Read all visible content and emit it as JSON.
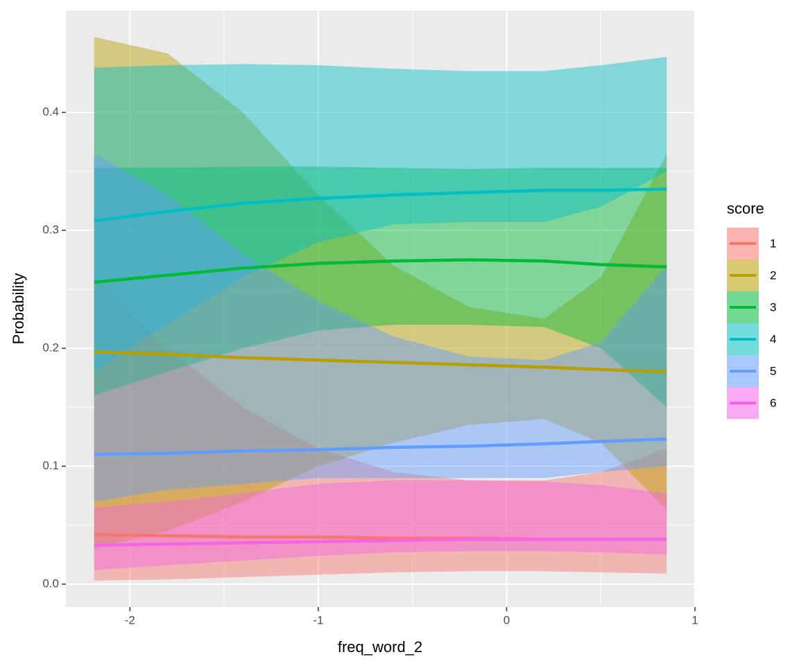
{
  "chart_data": {
    "type": "ribbon-line",
    "x_label": "freq_word_2",
    "y_label": "Probability",
    "legend_title": "score",
    "x": [
      -2.19,
      -1.8,
      -1.4,
      -1.0,
      -0.6,
      -0.2,
      0.2,
      0.5,
      0.85
    ],
    "xlim": [
      -2.34,
      1.0
    ],
    "xticks": [
      -2,
      -1,
      0,
      1
    ],
    "ylim": [
      -0.0194,
      0.4865
    ],
    "yticks": [
      {
        "value": 0,
        "label": "0.0"
      },
      0.1,
      0.2,
      0.3,
      0.4
    ],
    "grid": true,
    "legend": "right",
    "series": [
      {
        "name": "1",
        "color": "#F8766D",
        "values": [
          0.042,
          0.041,
          0.04,
          0.04,
          0.039,
          0.039,
          0.038,
          0.038,
          0.038
        ],
        "lower": [
          0.003,
          0.004,
          0.006,
          0.008,
          0.01,
          0.011,
          0.011,
          0.01,
          0.009
        ],
        "upper": [
          0.26,
          0.2,
          0.15,
          0.115,
          0.095,
          0.088,
          0.088,
          0.095,
          0.115
        ]
      },
      {
        "name": "2",
        "color": "#B79F00",
        "values": [
          0.197,
          0.195,
          0.192,
          0.19,
          0.188,
          0.186,
          0.184,
          0.182,
          0.18
        ],
        "lower": [
          0.03,
          0.045,
          0.07,
          0.1,
          0.12,
          0.135,
          0.14,
          0.12,
          0.063
        ],
        "upper": [
          0.464,
          0.45,
          0.4,
          0.33,
          0.27,
          0.235,
          0.225,
          0.26,
          0.365
        ]
      },
      {
        "name": "3",
        "color": "#00BA38",
        "values": [
          0.256,
          0.262,
          0.268,
          0.272,
          0.274,
          0.275,
          0.274,
          0.271,
          0.269
        ],
        "lower": [
          0.16,
          0.18,
          0.2,
          0.215,
          0.22,
          0.22,
          0.218,
          0.2,
          0.15
        ],
        "upper": [
          0.353,
          0.353,
          0.354,
          0.354,
          0.353,
          0.352,
          0.353,
          0.353,
          0.353
        ]
      },
      {
        "name": "4",
        "color": "#00BFC4",
        "values": [
          0.308,
          0.316,
          0.323,
          0.327,
          0.33,
          0.332,
          0.334,
          0.334,
          0.335
        ],
        "lower": [
          0.18,
          0.22,
          0.26,
          0.29,
          0.305,
          0.307,
          0.307,
          0.32,
          0.35
        ],
        "upper": [
          0.438,
          0.44,
          0.441,
          0.44,
          0.437,
          0.435,
          0.435,
          0.44,
          0.447
        ]
      },
      {
        "name": "5",
        "color": "#619CFF",
        "values": [
          0.11,
          0.111,
          0.113,
          0.114,
          0.116,
          0.117,
          0.119,
          0.121,
          0.123
        ],
        "lower": [
          0.07,
          0.08,
          0.085,
          0.09,
          0.09,
          0.09,
          0.09,
          0.095,
          0.1
        ],
        "upper": [
          0.365,
          0.33,
          0.28,
          0.24,
          0.21,
          0.193,
          0.19,
          0.205,
          0.27
        ]
      },
      {
        "name": "6",
        "color": "#F564E3",
        "values": [
          0.033,
          0.034,
          0.035,
          0.036,
          0.037,
          0.038,
          0.038,
          0.038,
          0.038
        ],
        "lower": [
          0.012,
          0.016,
          0.02,
          0.024,
          0.027,
          0.028,
          0.028,
          0.027,
          0.025
        ],
        "upper": [
          0.065,
          0.07,
          0.077,
          0.085,
          0.088,
          0.088,
          0.087,
          0.084,
          0.077
        ]
      }
    ]
  }
}
